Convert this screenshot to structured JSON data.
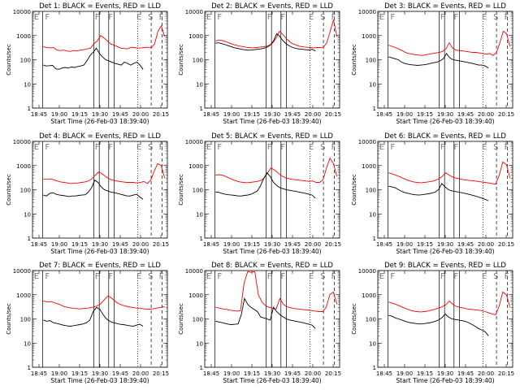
{
  "chart_data": {
    "type": "line",
    "layout": "3x3 grid",
    "y_scale": "log",
    "ylim": [
      1,
      10000
    ],
    "y_ticks": [
      "1",
      "10",
      "100",
      "1000",
      "10000"
    ],
    "ylabel": "Counts/sec",
    "xlabel": "Start Time (26-Feb-03 18:39:40)",
    "x_ticks": [
      "18:45",
      "19:00",
      "19:15",
      "19:30",
      "19:45",
      "20:00",
      "20:15"
    ],
    "series_colors": {
      "events": "#000000",
      "lld": "#ff0000"
    },
    "panels": [
      {
        "title": "Det 1: BLACK = Events, RED = LLD",
        "region_labels": [
          "E",
          "F",
          "F",
          "F",
          "E",
          "S",
          "F"
        ],
        "events": [
          60,
          55,
          57,
          58,
          42,
          40,
          45,
          48,
          45,
          50,
          48,
          52,
          55,
          60,
          90,
          150,
          200,
          300,
          180,
          130,
          100,
          90,
          80,
          70,
          65,
          60,
          80,
          70,
          60,
          70,
          80,
          60,
          40
        ],
        "lld": [
          350,
          320,
          310,
          320,
          250,
          240,
          250,
          230,
          220,
          240,
          230,
          250,
          260,
          280,
          300,
          450,
          600,
          1000,
          800,
          600,
          450,
          400,
          350,
          300,
          290,
          280,
          330,
          320,
          300,
          310,
          320,
          330,
          310,
          450,
          1500,
          2500,
          900
        ]
      },
      {
        "title": "Det 2: BLACK = Events, RED = LLD",
        "region_labels": [
          "E",
          "F",
          "F",
          "F",
          "E",
          "S",
          "F"
        ],
        "events": [
          480,
          500,
          460,
          420,
          380,
          340,
          310,
          290,
          270,
          260,
          250,
          250,
          260,
          270,
          280,
          300,
          330,
          400,
          600,
          1200,
          900,
          600,
          450,
          370,
          320,
          290,
          280,
          270,
          260,
          250,
          270,
          230
        ],
        "lld": [
          600,
          650,
          620,
          560,
          500,
          440,
          400,
          370,
          350,
          330,
          320,
          310,
          320,
          330,
          340,
          360,
          400,
          500,
          800,
          1500,
          1100,
          750,
          550,
          450,
          400,
          360,
          340,
          330,
          320,
          310,
          320,
          320,
          330,
          500,
          1500,
          4500,
          900
        ]
      },
      {
        "title": "Det 3: BLACK = Events, RED = LLD",
        "region_labels": [
          "E",
          "F",
          "F",
          "F",
          "E",
          "S",
          "F"
        ],
        "events": [
          130,
          120,
          110,
          100,
          80,
          70,
          65,
          62,
          60,
          58,
          60,
          62,
          65,
          70,
          75,
          80,
          90,
          110,
          180,
          120,
          100,
          95,
          90,
          85,
          80,
          75,
          70,
          65,
          60,
          60,
          55,
          45
        ],
        "lld": [
          400,
          360,
          320,
          280,
          240,
          200,
          180,
          170,
          160,
          155,
          150,
          160,
          170,
          180,
          190,
          200,
          220,
          280,
          500,
          300,
          250,
          240,
          230,
          220,
          210,
          200,
          200,
          190,
          180,
          170,
          180,
          150,
          200,
          500,
          1500,
          1200,
          350
        ]
      },
      {
        "title": "Det 4: BLACK = Events, RED = LLD",
        "region_labels": [
          "E",
          "F",
          "F",
          "F",
          "E",
          "S",
          "F"
        ],
        "events": [
          60,
          55,
          70,
          75,
          65,
          60,
          58,
          55,
          52,
          55,
          55,
          58,
          60,
          62,
          80,
          120,
          250,
          200,
          130,
          100,
          90,
          80,
          75,
          70,
          65,
          60,
          55,
          55,
          60,
          65,
          50,
          40
        ],
        "lld": [
          280,
          270,
          280,
          260,
          230,
          210,
          200,
          190,
          180,
          185,
          190,
          200,
          210,
          230,
          280,
          400,
          550,
          450,
          350,
          280,
          250,
          230,
          220,
          210,
          200,
          200,
          200,
          190,
          200,
          220,
          180,
          250,
          600,
          1200,
          1000,
          300
        ]
      },
      {
        "title": "Det 5: BLACK = Events, RED = LLD",
        "region_labels": [
          "E",
          "F",
          "F",
          "F",
          "E",
          "S",
          "F"
        ],
        "events": [
          80,
          78,
          70,
          65,
          62,
          60,
          58,
          55,
          55,
          58,
          60,
          65,
          75,
          90,
          150,
          300,
          500,
          350,
          200,
          150,
          120,
          110,
          100,
          95,
          90,
          85,
          80,
          75,
          70,
          65,
          60,
          45
        ],
        "lld": [
          400,
          420,
          400,
          350,
          300,
          260,
          230,
          210,
          200,
          195,
          200,
          210,
          220,
          240,
          300,
          500,
          800,
          650,
          500,
          380,
          320,
          290,
          270,
          260,
          250,
          240,
          230,
          220,
          230,
          200,
          200,
          260,
          800,
          2000,
          1200,
          350
        ]
      },
      {
        "title": "Det 6: BLACK = Events, RED = LLD",
        "region_labels": [
          "E",
          "F",
          "F",
          "F",
          "E",
          "S",
          "F"
        ],
        "events": [
          140,
          130,
          120,
          100,
          85,
          75,
          70,
          65,
          62,
          60,
          62,
          65,
          68,
          72,
          80,
          100,
          180,
          130,
          100,
          90,
          85,
          80,
          75,
          70,
          65,
          60,
          55,
          50,
          45,
          40,
          35
        ],
        "lld": [
          500,
          450,
          400,
          350,
          300,
          260,
          230,
          210,
          200,
          195,
          200,
          210,
          220,
          240,
          280,
          350,
          500,
          400,
          330,
          300,
          280,
          260,
          250,
          240,
          230,
          220,
          210,
          200,
          190,
          180,
          170,
          400,
          1400,
          1100,
          300
        ]
      },
      {
        "title": "Det 7: BLACK = Events, RED = LLD",
        "region_labels": [
          "E",
          "F",
          "F",
          "F",
          "E",
          "S",
          "F"
        ],
        "events": [
          90,
          80,
          85,
          70,
          65,
          60,
          55,
          52,
          50,
          52,
          55,
          58,
          62,
          70,
          90,
          200,
          300,
          250,
          150,
          100,
          80,
          70,
          65,
          60,
          58,
          55,
          52,
          50,
          55,
          60,
          50
        ],
        "lld": [
          550,
          500,
          520,
          450,
          400,
          330,
          300,
          280,
          270,
          260,
          270,
          280,
          300,
          330,
          400,
          600,
          900,
          700,
          500,
          400,
          350,
          320,
          300,
          280,
          270,
          260,
          250,
          260,
          280,
          300,
          320
        ]
      },
      {
        "title": "Det 8: BLACK = Events, RED = LLD",
        "region_labels": [
          "E",
          "F",
          "F",
          "F",
          "E",
          "S",
          "F"
        ],
        "events": [
          80,
          75,
          70,
          65,
          60,
          58,
          60,
          62,
          150,
          700,
          400,
          300,
          250,
          200,
          120,
          110,
          100,
          90,
          300,
          200,
          150,
          120,
          100,
          90,
          85,
          80,
          75,
          70,
          65,
          60,
          55,
          40
        ],
        "lld": [
          300,
          280,
          260,
          250,
          230,
          220,
          210,
          220,
          3000,
          9000,
          8500,
          9000,
          1000,
          500,
          350,
          300,
          280,
          260,
          700,
          400,
          320,
          290,
          270,
          260,
          250,
          240,
          230,
          220,
          210,
          200,
          200,
          300,
          1000,
          1300,
          400
        ]
      },
      {
        "title": "Det 9: BLACK = Events, RED = LLD",
        "region_labels": [
          "E",
          "F",
          "F",
          "F",
          "E",
          "S",
          "F"
        ],
        "events": [
          140,
          130,
          110,
          100,
          90,
          80,
          72,
          68,
          65,
          62,
          62,
          65,
          68,
          72,
          80,
          90,
          110,
          160,
          120,
          100,
          95,
          90,
          85,
          80,
          70,
          60,
          50,
          40,
          35,
          30,
          20
        ],
        "lld": [
          500,
          450,
          400,
          350,
          300,
          260,
          230,
          210,
          200,
          195,
          200,
          210,
          230,
          250,
          280,
          320,
          380,
          550,
          400,
          330,
          300,
          280,
          260,
          250,
          240,
          230,
          220,
          200,
          180,
          160,
          150,
          350,
          1300,
          1000,
          300
        ]
      }
    ]
  }
}
